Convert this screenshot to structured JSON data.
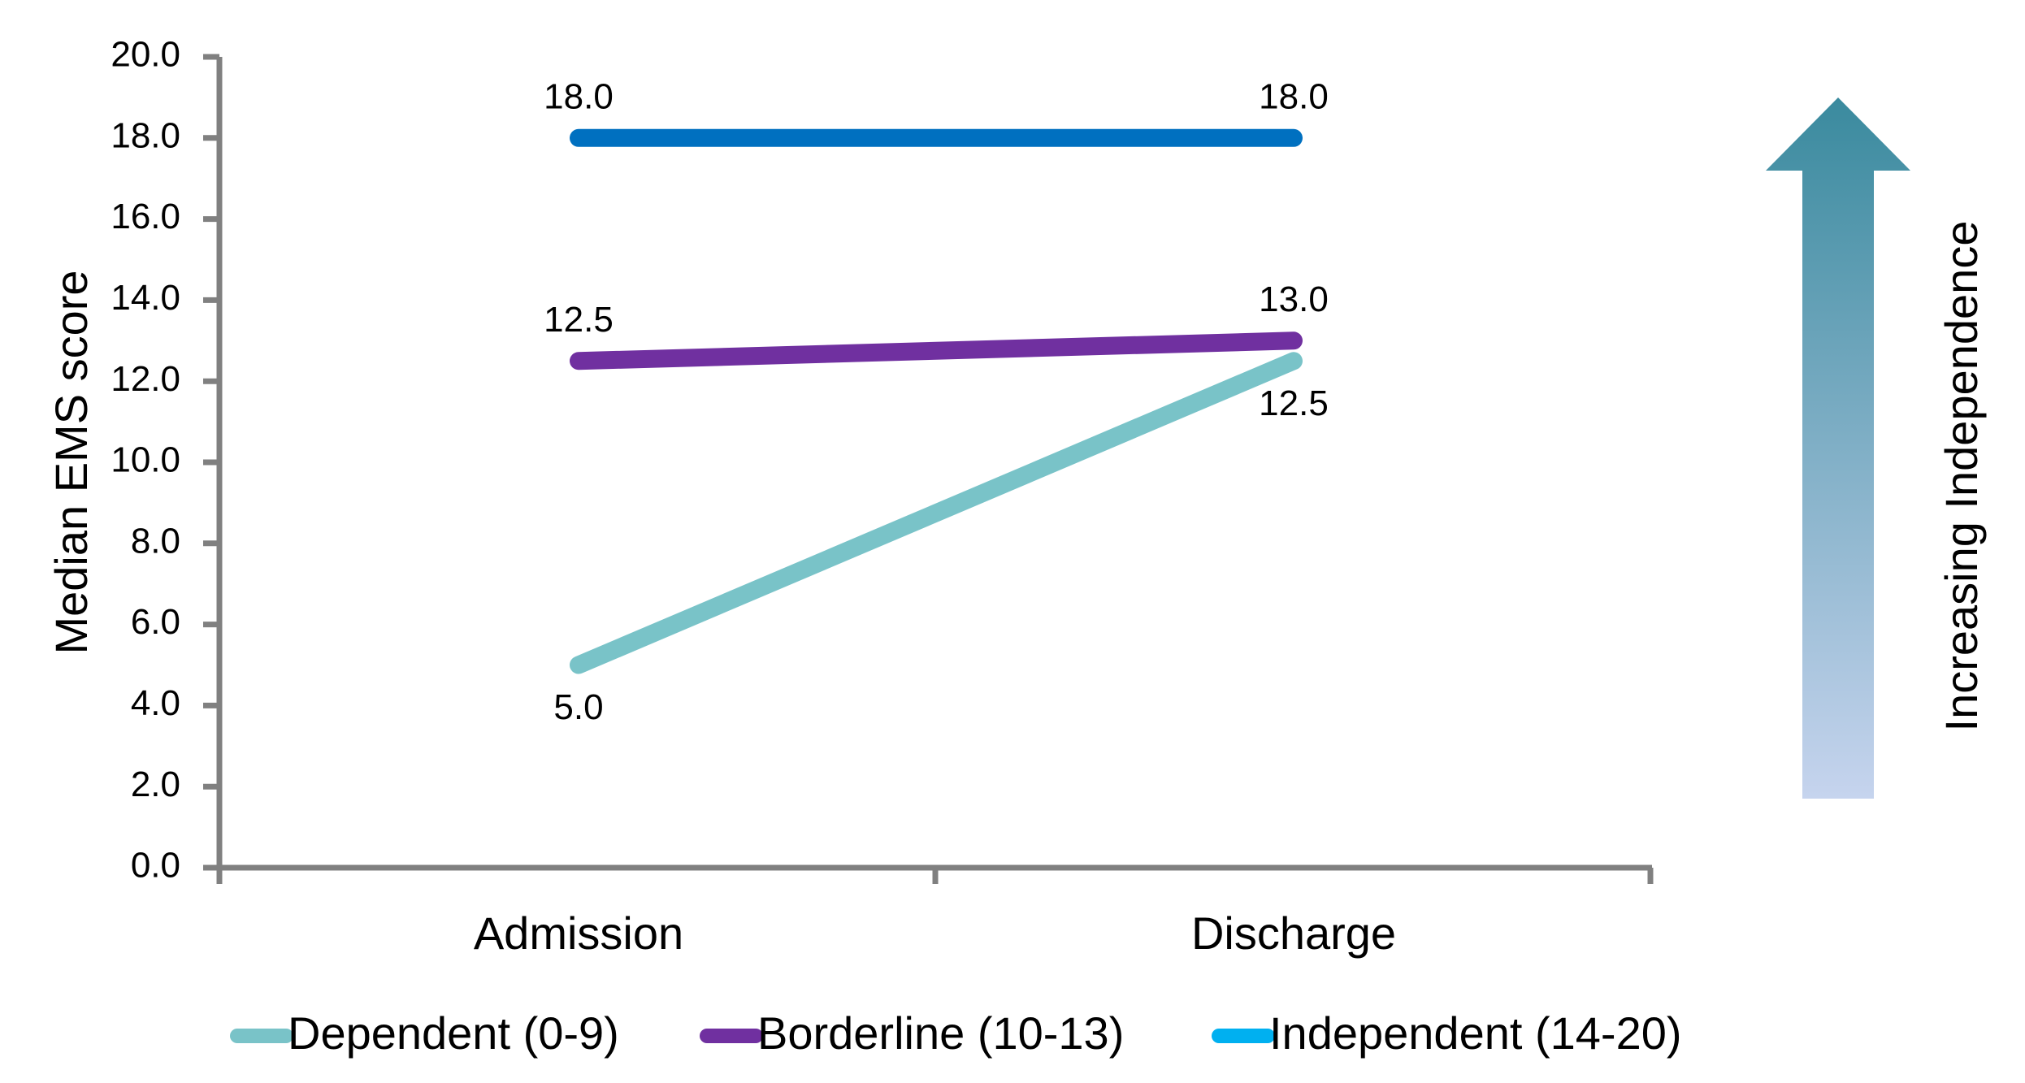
{
  "chart_data": {
    "type": "line",
    "categories": [
      "Admission",
      "Discharge"
    ],
    "ylabel": "Median EMS score",
    "ylim": [
      0,
      20
    ],
    "yticks": [
      "0.0",
      "2.0",
      "4.0",
      "6.0",
      "8.0",
      "10.0",
      "12.0",
      "14.0",
      "16.0",
      "18.0",
      "20.0"
    ],
    "grid": false,
    "legend_position": "bottom",
    "series": [
      {
        "name": "Dependent (0-9)",
        "values": [
          5.0,
          12.5
        ],
        "labels": [
          "5.0",
          "12.5"
        ],
        "color": "#79c3c8",
        "label_position": "below"
      },
      {
        "name": "Borderline (10-13)",
        "values": [
          12.5,
          13.0
        ],
        "labels": [
          "12.5",
          "13.0"
        ],
        "color": "#7030a0",
        "label_position": "above"
      },
      {
        "name": "Independent (14-20)",
        "values": [
          18.0,
          18.0
        ],
        "labels": [
          "18.0",
          "18.0"
        ],
        "color": "#0070c0",
        "label_position": "above",
        "legend_color": "#00b0f0"
      }
    ],
    "annotation": {
      "text": "Increasing Independence",
      "arrow_color_top": "#3a8a9e",
      "arrow_color_bottom": "#c6d4ee"
    }
  }
}
